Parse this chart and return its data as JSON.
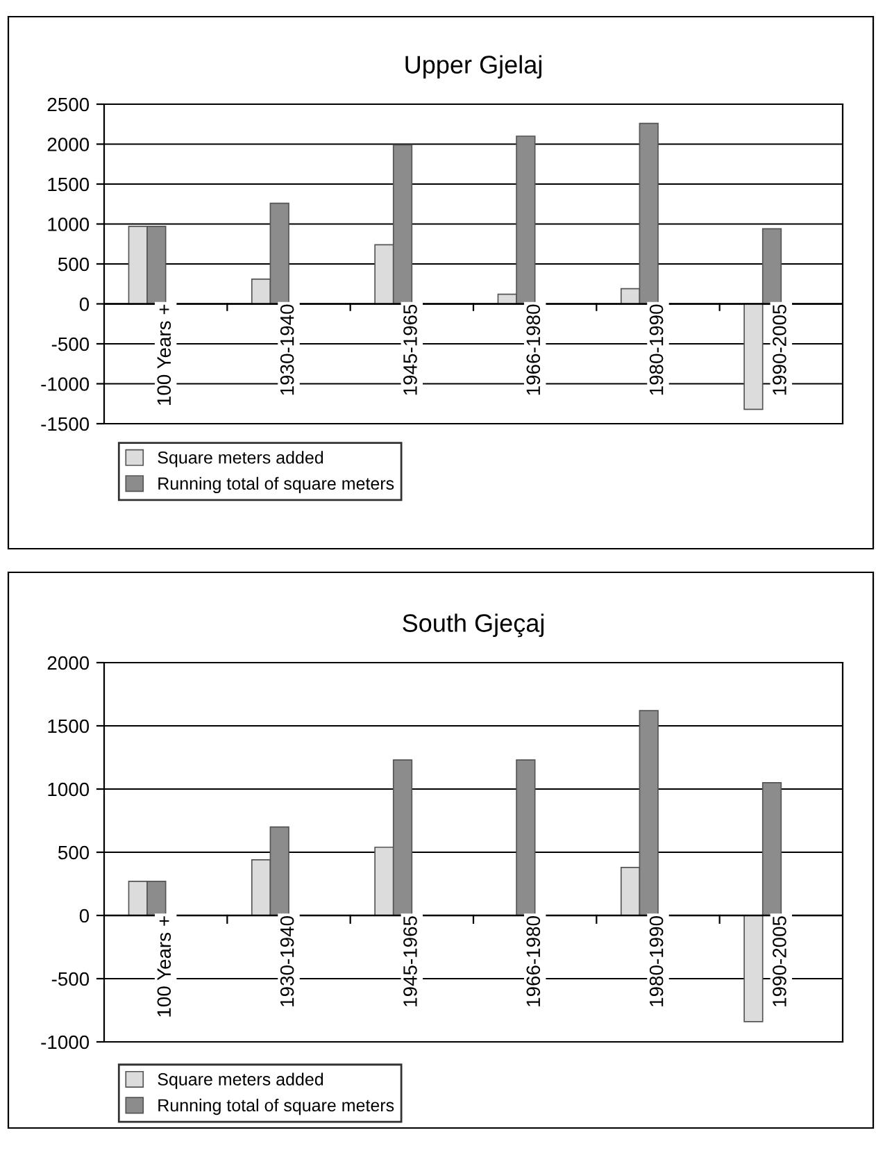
{
  "chart_data": [
    {
      "type": "bar",
      "title": "Upper Gjelaj",
      "categories": [
        "100 Years +",
        "1930-1940",
        "1945-1965",
        "1966-1980",
        "1980-1990",
        "1990-2005"
      ],
      "series": [
        {
          "name": "Square meters added",
          "color": "#dcdcdc",
          "values": [
            970,
            310,
            740,
            120,
            190,
            -1320
          ]
        },
        {
          "name": "Running total of square meters",
          "color": "#8c8c8c",
          "values": [
            970,
            1260,
            1990,
            2100,
            2260,
            940
          ]
        }
      ],
      "ylim": [
        -1500,
        2500
      ],
      "yticks": [
        -1500,
        -1000,
        -500,
        0,
        500,
        1000,
        1500,
        2000,
        2500
      ],
      "grid": "y",
      "legend": "bottom left"
    },
    {
      "type": "bar",
      "title": "South Gjeçaj",
      "categories": [
        "100 Years +",
        "1930-1940",
        "1945-1965",
        "1966-1980",
        "1980-1990",
        "1990-2005"
      ],
      "series": [
        {
          "name": "Square meters added",
          "color": "#dcdcdc",
          "values": [
            270,
            440,
            540,
            0,
            380,
            -840
          ]
        },
        {
          "name": "Running total of square meters",
          "color": "#8c8c8c",
          "values": [
            270,
            700,
            1230,
            1230,
            1620,
            1050
          ]
        }
      ],
      "ylim": [
        -1000,
        2000
      ],
      "yticks": [
        -1000,
        -500,
        0,
        500,
        1000,
        1500,
        2000
      ],
      "grid": "y",
      "legend": "bottom left"
    }
  ]
}
